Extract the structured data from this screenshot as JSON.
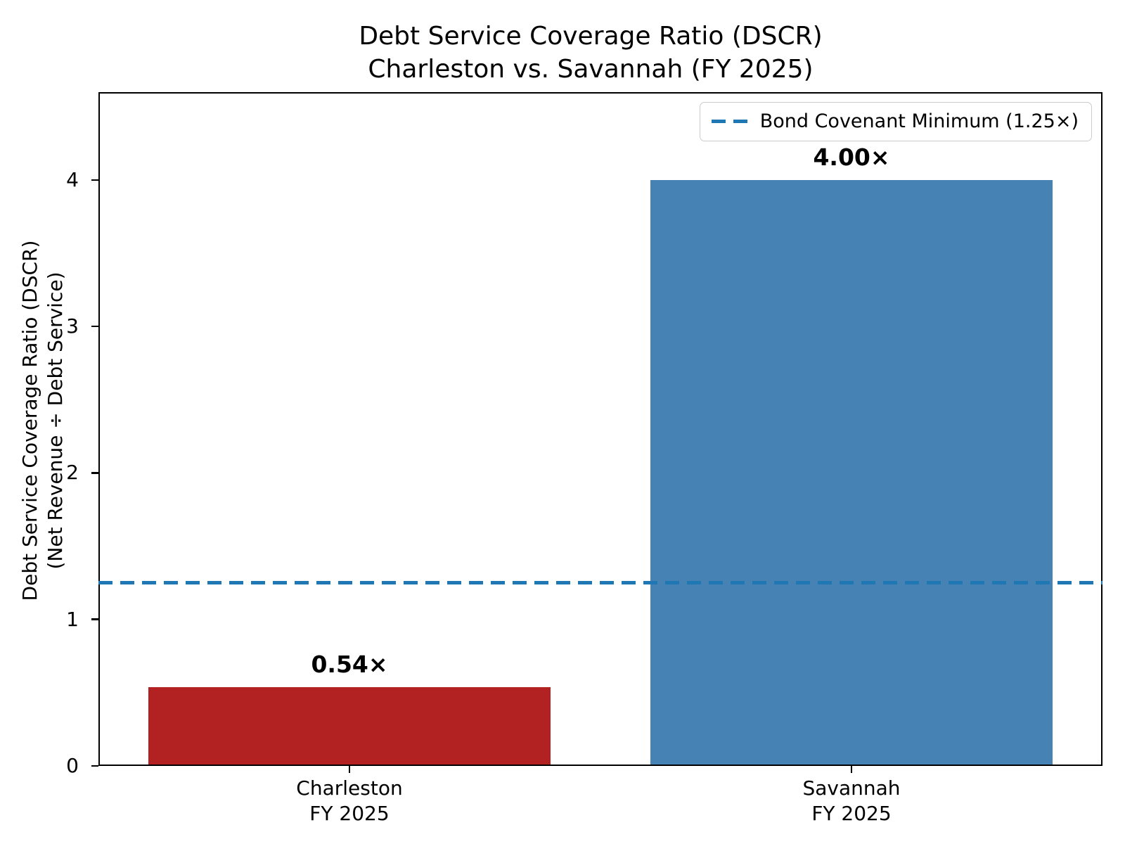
{
  "chart_data": {
    "type": "bar",
    "title": "Debt Service Coverage Ratio (DSCR)",
    "subtitle": "Charleston vs. Savannah (FY 2025)",
    "ylabel_line1": "Debt Service Coverage Ratio (DSCR)",
    "ylabel_line2": "(Net Revenue ÷ Debt Service)",
    "categories": [
      {
        "line1": "Charleston",
        "line2": "FY 2025"
      },
      {
        "line1": "Savannah",
        "line2": "FY 2025"
      }
    ],
    "values": [
      0.54,
      4.0
    ],
    "value_labels": [
      "0.54×",
      "4.00×"
    ],
    "bar_colors": [
      "#b22222",
      "#4682b4"
    ],
    "yticks": [
      "0",
      "1",
      "2",
      "3",
      "4"
    ],
    "ytick_values": [
      0,
      1,
      2,
      3,
      4
    ],
    "ylim": [
      0,
      4.6
    ],
    "grid": false,
    "legend_position": "upper right",
    "reference_line": {
      "value": 1.25,
      "style": "dashed",
      "color": "#1f77b4",
      "label": "Bond Covenant Minimum (1.25×)"
    }
  },
  "colors": {
    "background": "#ffffff",
    "axis": "#000000",
    "text": "#000000",
    "legend_border": "#cccccc",
    "charleston_bar": "#b22222",
    "savannah_bar": "#4682b4",
    "covenant_line": "#1f77b4"
  }
}
